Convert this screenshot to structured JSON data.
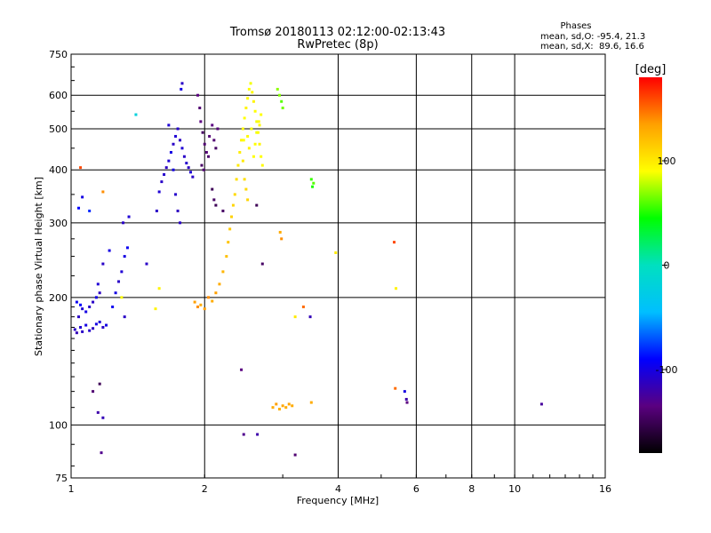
{
  "chart_data": {
    "type": "scatter",
    "title": "Tromsø 20180113 02:12:00-02:13:43",
    "subtitle": "RwPretec (8p)",
    "xlabel": "Frequency [MHz]",
    "ylabel": "Stationary phase Virtual Height [km]",
    "x_scale": "log",
    "y_scale": "log",
    "xlim": [
      1,
      16
    ],
    "ylim": [
      75,
      750
    ],
    "x_ticks": [
      1,
      2,
      4,
      6,
      8,
      10,
      16
    ],
    "y_ticks": [
      75,
      100,
      200,
      300,
      400,
      500,
      600,
      750
    ],
    "grid": true,
    "phase_box": {
      "title": "Phases",
      "line1": "mean, sd,O: -95.4, 21.3",
      "line2": "mean, sd,X:  89.6, 16.6"
    },
    "colorbar": {
      "label": "[deg]",
      "range": [
        -180,
        180
      ],
      "ticks": [
        100,
        0,
        -100
      ],
      "colors": [
        "#000000",
        "#5a0080",
        "#0000ff",
        "#00bfff",
        "#00e0c0",
        "#00ff00",
        "#ffff00",
        "#ffa000",
        "#ff0000"
      ]
    },
    "series": [
      {
        "points": [
          [
            1.02,
            168,
            -110
          ],
          [
            1.03,
            165,
            -115
          ],
          [
            1.05,
            170,
            -105
          ],
          [
            1.06,
            166,
            -110
          ],
          [
            1.08,
            172,
            -100
          ],
          [
            1.1,
            167,
            -108
          ],
          [
            1.12,
            169,
            -112
          ],
          [
            1.14,
            173,
            -100
          ],
          [
            1.16,
            175,
            -105
          ],
          [
            1.18,
            170,
            -110
          ],
          [
            1.2,
            172,
            -100
          ],
          [
            1.04,
            180,
            -110
          ],
          [
            1.06,
            188,
            -105
          ],
          [
            1.08,
            185,
            -100
          ],
          [
            1.1,
            190,
            -108
          ],
          [
            1.12,
            195,
            -110
          ],
          [
            1.14,
            200,
            -100
          ],
          [
            1.16,
            205,
            -112
          ],
          [
            1.15,
            215,
            -105
          ],
          [
            1.18,
            240,
            -110
          ],
          [
            1.22,
            258,
            -100
          ],
          [
            1.03,
            195,
            -95
          ],
          [
            1.05,
            192,
            -90
          ],
          [
            1.24,
            190,
            -95
          ],
          [
            1.26,
            205,
            -100
          ],
          [
            1.28,
            218,
            -110
          ],
          [
            1.3,
            230,
            -105
          ],
          [
            1.32,
            250,
            -100
          ],
          [
            1.34,
            262,
            -95
          ],
          [
            1.31,
            300,
            -110
          ],
          [
            1.35,
            310,
            -105
          ],
          [
            1.56,
            320,
            -110
          ],
          [
            1.58,
            355,
            -105
          ],
          [
            1.6,
            375,
            -110
          ],
          [
            1.62,
            390,
            -108
          ],
          [
            1.64,
            405,
            -112
          ],
          [
            1.66,
            420,
            -105
          ],
          [
            1.68,
            440,
            -100
          ],
          [
            1.7,
            460,
            -110
          ],
          [
            1.72,
            480,
            -105
          ],
          [
            1.74,
            500,
            -108
          ],
          [
            1.76,
            470,
            -112
          ],
          [
            1.78,
            450,
            -105
          ],
          [
            1.8,
            430,
            -110
          ],
          [
            1.82,
            415,
            -108
          ],
          [
            1.84,
            405,
            -112
          ],
          [
            1.86,
            395,
            -105
          ],
          [
            1.88,
            385,
            -110
          ],
          [
            1.7,
            400,
            -100
          ],
          [
            1.72,
            350,
            -108
          ],
          [
            1.74,
            320,
            -112
          ],
          [
            1.76,
            300,
            -110
          ],
          [
            1.66,
            510,
            -105
          ],
          [
            1.78,
            640,
            -110
          ],
          [
            1.77,
            620,
            -100
          ],
          [
            1.93,
            600,
            -135
          ],
          [
            1.95,
            560,
            -140
          ],
          [
            1.96,
            520,
            -135
          ],
          [
            1.98,
            490,
            -145
          ],
          [
            2.0,
            460,
            -140
          ],
          [
            2.02,
            440,
            -138
          ],
          [
            2.04,
            430,
            -142
          ],
          [
            1.97,
            410,
            -145
          ],
          [
            1.99,
            400,
            -140
          ],
          [
            2.05,
            480,
            -138
          ],
          [
            2.08,
            510,
            -135
          ],
          [
            2.1,
            470,
            -140
          ],
          [
            2.12,
            450,
            -145
          ],
          [
            2.14,
            500,
            -138
          ],
          [
            2.08,
            360,
            -150
          ],
          [
            2.1,
            340,
            -145
          ],
          [
            2.12,
            330,
            -150
          ],
          [
            2.2,
            320,
            -145
          ],
          [
            2.62,
            330,
            -150
          ],
          [
            1.9,
            195,
            135
          ],
          [
            1.93,
            190,
            140
          ],
          [
            1.96,
            192,
            130
          ],
          [
            2.0,
            188,
            135
          ],
          [
            2.04,
            200,
            140
          ],
          [
            2.08,
            196,
            130
          ],
          [
            2.12,
            205,
            135
          ],
          [
            2.16,
            215,
            130
          ],
          [
            2.2,
            230,
            125
          ],
          [
            2.24,
            250,
            120
          ],
          [
            2.26,
            270,
            118
          ],
          [
            2.28,
            290,
            115
          ],
          [
            2.3,
            310,
            112
          ],
          [
            2.32,
            330,
            110
          ],
          [
            2.34,
            350,
            108
          ],
          [
            2.36,
            380,
            105
          ],
          [
            2.38,
            410,
            100
          ],
          [
            2.4,
            440,
            98
          ],
          [
            2.42,
            470,
            95
          ],
          [
            2.44,
            500,
            92
          ],
          [
            2.46,
            530,
            90
          ],
          [
            2.48,
            560,
            95
          ],
          [
            2.5,
            590,
            92
          ],
          [
            2.52,
            620,
            90
          ],
          [
            2.54,
            640,
            88
          ],
          [
            2.56,
            610,
            92
          ],
          [
            2.58,
            580,
            95
          ],
          [
            2.6,
            550,
            90
          ],
          [
            2.62,
            520,
            88
          ],
          [
            2.64,
            490,
            92
          ],
          [
            2.66,
            460,
            95
          ],
          [
            2.68,
            430,
            90
          ],
          [
            2.7,
            410,
            92
          ],
          [
            2.44,
            420,
            100
          ],
          [
            2.46,
            380,
            105
          ],
          [
            2.48,
            360,
            108
          ],
          [
            2.5,
            340,
            110
          ],
          [
            2.45,
            470,
            90
          ],
          [
            2.5,
            480,
            92
          ],
          [
            2.55,
            500,
            88
          ],
          [
            2.6,
            460,
            90
          ],
          [
            2.65,
            520,
            92
          ],
          [
            2.52,
            450,
            95
          ],
          [
            2.58,
            430,
            90
          ],
          [
            2.62,
            490,
            88
          ],
          [
            2.66,
            510,
            92
          ],
          [
            2.68,
            540,
            90
          ],
          [
            2.92,
            620,
            70
          ],
          [
            2.98,
            580,
            60
          ],
          [
            3.0,
            560,
            65
          ],
          [
            2.95,
            600,
            68
          ],
          [
            3.48,
            380,
            55
          ],
          [
            3.5,
            365,
            50
          ],
          [
            3.52,
            372,
            60
          ],
          [
            2.85,
            110,
            130
          ],
          [
            2.9,
            112,
            135
          ],
          [
            2.95,
            109,
            128
          ],
          [
            3.0,
            111,
            132
          ],
          [
            3.05,
            110,
            130
          ],
          [
            3.1,
            112,
            134
          ],
          [
            3.15,
            111,
            130
          ],
          [
            1.16,
            125,
            -150
          ],
          [
            1.12,
            120,
            -140
          ],
          [
            1.15,
            107,
            -120
          ],
          [
            1.18,
            104,
            -115
          ],
          [
            1.17,
            86,
            -130
          ],
          [
            2.42,
            135,
            -135
          ],
          [
            2.45,
            95,
            -130
          ],
          [
            2.63,
            95,
            -120
          ],
          [
            3.2,
            85,
            -140
          ],
          [
            1.3,
            200,
            90
          ],
          [
            1.32,
            180,
            -110
          ],
          [
            1.48,
            240,
            -110
          ],
          [
            1.55,
            188,
            95
          ],
          [
            1.58,
            210,
            95
          ],
          [
            2.96,
            285,
            130
          ],
          [
            2.98,
            275,
            140
          ],
          [
            3.46,
            180,
            -115
          ],
          [
            3.48,
            113,
            130
          ],
          [
            3.95,
            255,
            100
          ],
          [
            5.35,
            270,
            160
          ],
          [
            5.4,
            210,
            95
          ],
          [
            5.38,
            122,
            150
          ],
          [
            5.65,
            120,
            -100
          ],
          [
            5.7,
            115,
            -120
          ],
          [
            5.72,
            113,
            -135
          ],
          [
            11.5,
            112,
            -125
          ],
          [
            1.04,
            325,
            -90
          ],
          [
            1.06,
            345,
            -100
          ],
          [
            1.18,
            355,
            140
          ],
          [
            1.1,
            320,
            -80
          ],
          [
            1.05,
            405,
            160
          ],
          [
            1.4,
            540,
            -20
          ],
          [
            3.2,
            180,
            100
          ],
          [
            3.34,
            190,
            150
          ],
          [
            2.7,
            240,
            -145
          ]
        ]
      }
    ]
  }
}
